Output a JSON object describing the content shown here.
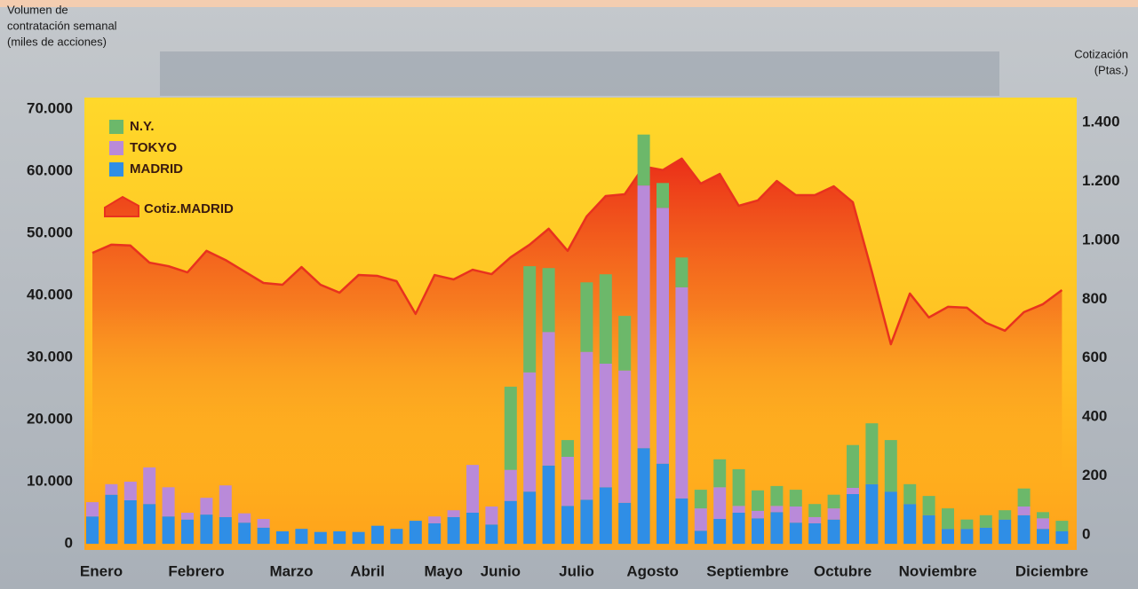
{
  "chart_data": {
    "type": "bar",
    "y_label_lines": [
      "Volumen de",
      "contratación semanal",
      "(miles de acciones)"
    ],
    "y2_label_lines": [
      "Cotización",
      "(Ptas.)"
    ],
    "categories": [
      "Enero",
      null,
      null,
      null,
      null,
      "Febrero",
      null,
      null,
      null,
      null,
      "Marzo",
      null,
      null,
      null,
      "Abril",
      null,
      null,
      null,
      "Mayo",
      null,
      null,
      "Junio",
      null,
      null,
      null,
      "Julio",
      null,
      null,
      null,
      "Agosto",
      null,
      null,
      null,
      null,
      "Septiembre",
      null,
      null,
      null,
      null,
      "Octubre",
      null,
      null,
      null,
      null,
      "Noviembre",
      null,
      null,
      null,
      null,
      null,
      "Diciembre",
      null
    ],
    "series": [
      {
        "name": "MADRID",
        "color": "#2f8ee6",
        "values": [
          4400,
          7900,
          7000,
          6400,
          4400,
          3900,
          4700,
          4300,
          3400,
          2600,
          2000,
          2400,
          1900,
          2000,
          1900,
          2900,
          2400,
          3700,
          3300,
          4300,
          5000,
          3100,
          6900,
          8400,
          12600,
          6100,
          7100,
          9100,
          6600,
          15400,
          12900,
          7300,
          2100,
          4000,
          5000,
          4100,
          5100,
          3400,
          3300,
          3900,
          8000,
          9600,
          8400,
          6400,
          4600,
          2400,
          2400,
          2600,
          3900,
          4600,
          2400,
          2000
        ]
      },
      {
        "name": "TOKYO",
        "color": "#b98ad9",
        "values": [
          2300,
          1700,
          3000,
          5900,
          4700,
          1100,
          2700,
          5100,
          1500,
          1400,
          0,
          0,
          0,
          0,
          0,
          0,
          0,
          0,
          1100,
          1100,
          7700,
          2900,
          5000,
          19200,
          21500,
          7900,
          23800,
          19900,
          21300,
          42300,
          41200,
          34000,
          3600,
          5100,
          1100,
          1200,
          1000,
          2600,
          1000,
          1800,
          1000,
          0,
          0,
          0,
          0,
          0,
          0,
          0,
          0,
          1400,
          1700,
          0
        ]
      },
      {
        "name": "N.Y.",
        "color": "#6cb86a",
        "values": [
          0,
          0,
          0,
          0,
          0,
          0,
          0,
          0,
          0,
          0,
          0,
          0,
          0,
          0,
          0,
          0,
          0,
          0,
          0,
          0,
          0,
          0,
          13400,
          17100,
          10300,
          2700,
          11200,
          14400,
          8800,
          8200,
          4000,
          4800,
          3000,
          4500,
          5900,
          3300,
          3200,
          2700,
          2100,
          2200,
          6900,
          9800,
          8300,
          3200,
          3100,
          3300,
          1500,
          2000,
          1500,
          2900,
          1000,
          1700
        ]
      },
      {
        "name": "Cotiz.MADRID",
        "color": "#e8321e",
        "axis": "y2",
        "values": [
          957,
          985,
          982,
          924,
          912,
          891,
          964,
          933,
          894,
          855,
          849,
          909,
          849,
          822,
          882,
          879,
          861,
          750,
          882,
          867,
          900,
          885,
          942,
          985,
          1039,
          964,
          1081,
          1150,
          1156,
          1250,
          1238,
          1277,
          1192,
          1225,
          1117,
          1135,
          1201,
          1153,
          1153,
          1183,
          1129,
          894,
          647,
          819,
          738,
          774,
          771,
          720,
          693,
          756,
          783,
          831
        ]
      }
    ],
    "ylim": [
      0,
      70000
    ],
    "yticks": [
      0,
      {
        "value": 10000,
        "label": "10.000"
      },
      {
        "value": 20000,
        "label": "20.000"
      },
      {
        "value": 30000,
        "label": "30.000"
      },
      {
        "value": 40000,
        "label": "40.000"
      },
      {
        "value": 50000,
        "label": "50.000"
      },
      {
        "value": 60000,
        "label": "60.000"
      },
      {
        "value": 70000,
        "label": "70.000"
      }
    ],
    "y2lim": [
      -30,
      1445
    ],
    "y2ticks": [
      0,
      200,
      400,
      600,
      800,
      {
        "value": 1000,
        "label": "1.000"
      },
      {
        "value": 1200,
        "label": "1.200"
      },
      {
        "value": 1400,
        "label": "1.400"
      }
    ],
    "stacked": true
  }
}
